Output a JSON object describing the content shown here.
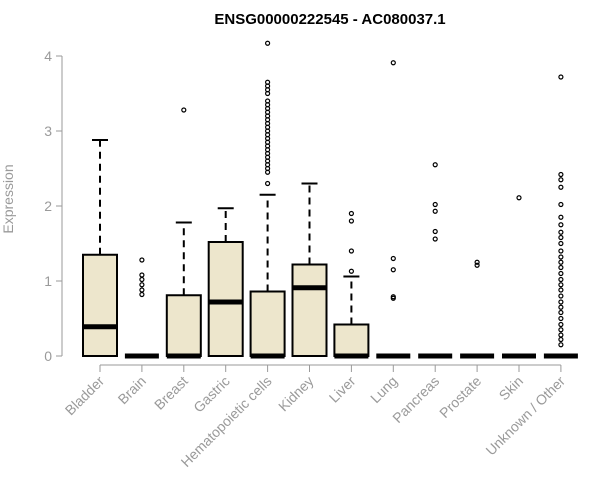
{
  "chart_data": {
    "type": "boxplot",
    "title": "ENSG00000222545 - AC080037.1",
    "ylabel": "Expression",
    "xlabel": "",
    "ylim": [
      0,
      4
    ],
    "yticks": [
      0,
      1,
      2,
      3,
      4
    ],
    "box_fill": "#ede6cc",
    "line_color": "#000000",
    "axis_color": "#9a9a9a",
    "categories": [
      "Bladder",
      "Brain",
      "Breast",
      "Gastric",
      "Hematopoietic cells",
      "Kidney",
      "Liver",
      "Lung",
      "Pancreas",
      "Prostate",
      "Skin",
      "Unknown / Other"
    ],
    "boxes": [
      {
        "q1": 0,
        "median": 0.39,
        "q3": 1.35,
        "whisker_low": 0,
        "whisker_high": 2.88,
        "outliers": []
      },
      {
        "q1": 0,
        "median": 0,
        "q3": 0,
        "whisker_low": 0,
        "whisker_high": 0,
        "outliers": [
          0.82,
          0.88,
          0.95,
          1.02,
          1.08,
          1.28
        ]
      },
      {
        "q1": 0,
        "median": 0,
        "q3": 0.81,
        "whisker_low": 0,
        "whisker_high": 1.78,
        "outliers": [
          3.28
        ]
      },
      {
        "q1": 0,
        "median": 0.72,
        "q3": 1.52,
        "whisker_low": 0,
        "whisker_high": 1.97,
        "outliers": []
      },
      {
        "q1": 0,
        "median": 0,
        "q3": 0.86,
        "whisker_low": 0,
        "whisker_high": 2.15,
        "outliers": [
          2.3,
          2.45,
          2.5,
          2.55,
          2.6,
          2.65,
          2.7,
          2.75,
          2.8,
          2.85,
          2.9,
          2.95,
          3.0,
          3.05,
          3.1,
          3.15,
          3.2,
          3.25,
          3.3,
          3.35,
          3.4,
          3.5,
          3.55,
          3.6,
          3.65,
          4.17
        ]
      },
      {
        "q1": 0,
        "median": 0.91,
        "q3": 1.22,
        "whisker_low": 0,
        "whisker_high": 2.3,
        "outliers": []
      },
      {
        "q1": 0,
        "median": 0,
        "q3": 0.42,
        "whisker_low": 0,
        "whisker_high": 1.06,
        "outliers": [
          1.13,
          1.4,
          1.8,
          1.9
        ]
      },
      {
        "q1": 0,
        "median": 0,
        "q3": 0,
        "whisker_low": 0,
        "whisker_high": 0,
        "outliers": [
          0.77,
          0.79,
          1.15,
          1.3,
          3.91
        ]
      },
      {
        "q1": 0,
        "median": 0,
        "q3": 0,
        "whisker_low": 0,
        "whisker_high": 0,
        "outliers": [
          1.56,
          1.66,
          1.93,
          2.02,
          2.55
        ]
      },
      {
        "q1": 0,
        "median": 0,
        "q3": 0,
        "whisker_low": 0,
        "whisker_high": 0,
        "outliers": [
          1.21,
          1.25
        ]
      },
      {
        "q1": 0,
        "median": 0,
        "q3": 0,
        "whisker_low": 0,
        "whisker_high": 0,
        "outliers": [
          2.11
        ]
      },
      {
        "q1": 0,
        "median": 0,
        "q3": 0,
        "whisker_low": 0,
        "whisker_high": 0,
        "outliers": [
          0.15,
          0.22,
          0.28,
          0.35,
          0.42,
          0.5,
          0.58,
          0.65,
          0.72,
          0.8,
          0.88,
          0.95,
          1.02,
          1.1,
          1.18,
          1.25,
          1.32,
          1.4,
          1.5,
          1.58,
          1.65,
          1.75,
          1.85,
          2.02,
          2.25,
          2.35,
          2.42,
          3.72
        ]
      }
    ]
  }
}
